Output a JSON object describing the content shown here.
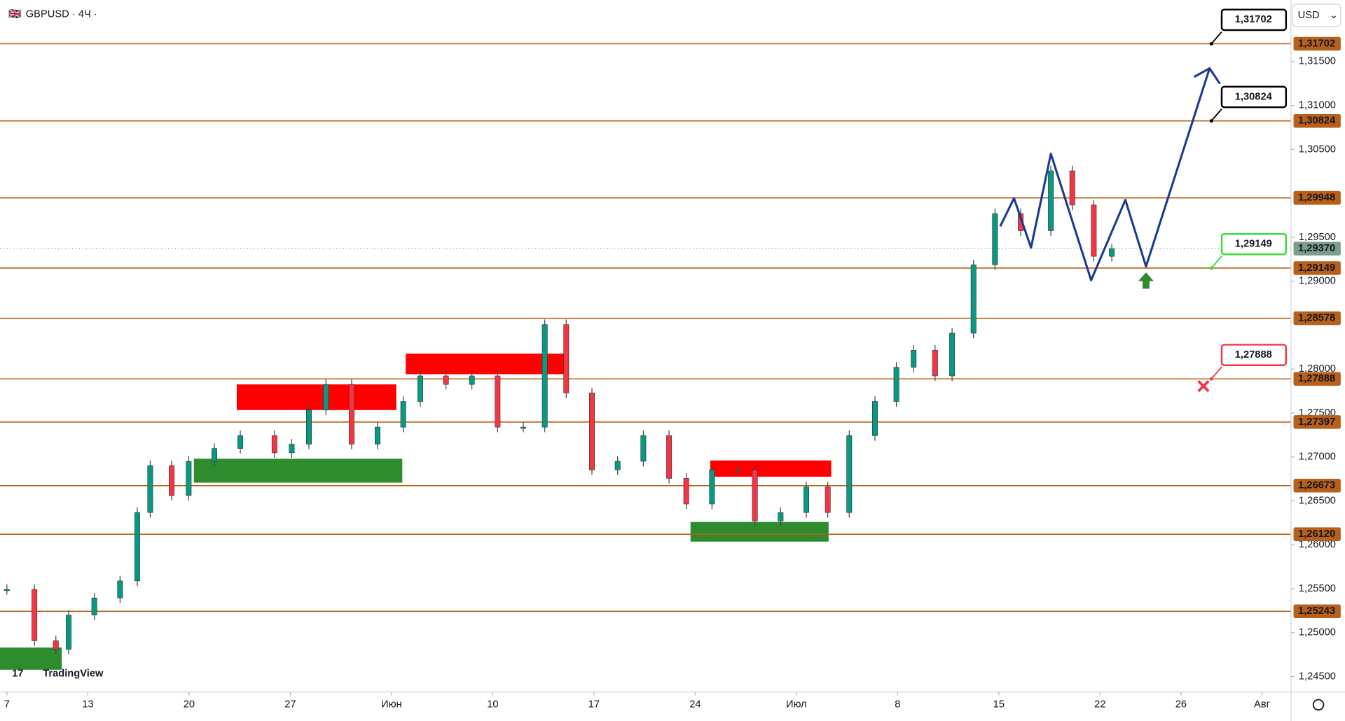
{
  "chart_data": {
    "type": "candlestick",
    "title": "GBPUSD · 4Ч ·",
    "currency": "USD",
    "logo": "TradingView",
    "x": [
      0,
      1.36,
      2.42,
      3.05,
      4.32,
      5.59,
      6.44,
      7.08,
      8.14,
      8.98,
      10.25,
      11.53,
      13.22,
      14.07,
      14.92,
      15.76,
      17.03,
      18.31,
      19.58,
      20.42,
      21.69,
      22.97,
      24.24,
      25.51,
      26.57,
      27.63,
      28.9,
      30.17,
      31.44,
      32.71,
      33.56,
      34.83,
      36.1,
      36.95,
      38.22,
      39.49,
      40.55,
      41.61,
      42.88,
      43.94,
      44.79,
      45.85,
      46.69,
      47.75,
      48.81,
      50.08,
      51.57,
      52.63,
      53.69,
      54.58
    ],
    "values": [
      1.25492,
      1.24908,
      1.24811,
      1.252,
      1.25395,
      1.25589,
      1.26367,
      1.26901,
      1.26561,
      1.2695,
      1.27096,
      1.27242,
      1.27047,
      1.27145,
      1.27533,
      1.27825,
      1.27145,
      1.27339,
      1.27631,
      1.27922,
      1.27825,
      1.27922,
      1.27339,
      1.27339,
      1.28506,
      1.27728,
      1.26853,
      1.2695,
      1.27242,
      1.26756,
      1.26464,
      1.26853,
      1.26853,
      1.2627,
      1.26367,
      1.26658,
      1.26367,
      1.27242,
      1.27631,
      1.2802,
      1.28214,
      1.27922,
      1.28408,
      1.29186,
      1.29769,
      1.29575,
      1.30256,
      1.29867,
      1.29283,
      1.2937
    ],
    "up_color": "#089981",
    "down_color": "#f23645",
    "xlim": [
      -0.34,
      63.43
    ],
    "xticks": [
      {
        "value": 0,
        "label": "7"
      },
      {
        "value": 4,
        "label": "13"
      },
      {
        "value": 9,
        "label": "20"
      },
      {
        "value": 14,
        "label": "27"
      },
      {
        "value": 19,
        "label": "Июн"
      },
      {
        "value": 24,
        "label": "10"
      },
      {
        "value": 29,
        "label": "17"
      },
      {
        "value": 34,
        "label": "24"
      },
      {
        "value": 39,
        "label": "Июл"
      },
      {
        "value": 44,
        "label": "8"
      },
      {
        "value": 49,
        "label": "15"
      },
      {
        "value": 54,
        "label": "22"
      },
      {
        "value": 58,
        "label": "26"
      },
      {
        "value": 62,
        "label": "Авг"
      }
    ],
    "ylim": [
      1.24325,
      1.322
    ],
    "yticks": [
      {
        "value": 1.315,
        "label": "1,31500"
      },
      {
        "value": 1.31,
        "label": "1,31000"
      },
      {
        "value": 1.305,
        "label": "1,30500"
      },
      {
        "value": 1.295,
        "label": "1,29500"
      },
      {
        "value": 1.29,
        "label": "1,29000"
      },
      {
        "value": 1.28,
        "label": "1,28000"
      },
      {
        "value": 1.275,
        "label": "1,27500"
      },
      {
        "value": 1.27,
        "label": "1,27000"
      },
      {
        "value": 1.265,
        "label": "1,26500"
      },
      {
        "value": 1.26,
        "label": "1,26000"
      },
      {
        "value": 1.255,
        "label": "1,25500"
      },
      {
        "value": 1.25,
        "label": "1,25000"
      },
      {
        "value": 1.245,
        "label": "1,24500"
      }
    ],
    "levels": {
      "color": "#b8601a",
      "values": [
        1.31702,
        1.30824,
        1.29948,
        1.29149,
        1.28578,
        1.27888,
        1.27397,
        1.26673,
        1.2612,
        1.25243
      ],
      "value_labels": [
        "1,31702",
        "1,30824",
        "1,29948",
        "1,29149",
        "1,28578",
        "1,27888",
        "1,27397",
        "1,26673",
        "1,26120",
        "1,25243"
      ]
    },
    "last_price": {
      "value": 1.2937,
      "label": "1,29370",
      "color": "#7d9e8c"
    },
    "forecast": {
      "color": "#1a3a8f",
      "x": [
        49.07,
        49.75,
        50.59,
        51.57,
        53.56,
        55.25,
        56.27,
        59.41
      ],
      "values": [
        1.29624,
        1.29944,
        1.29381,
        1.3045,
        1.29011,
        1.29925,
        1.29167,
        1.31422
      ]
    },
    "callouts": [
      {
        "x": 59.5,
        "value": 1.31702,
        "label": "1,31702",
        "color": "#000000"
      },
      {
        "x": 59.5,
        "value": 1.30824,
        "label": "1,30824",
        "color": "#000000"
      },
      {
        "x": 59.5,
        "value": 1.29149,
        "label": "1,29149",
        "color": "#33dd33"
      },
      {
        "x": 59.5,
        "value": 1.27888,
        "label": "1,27888",
        "color": "#f23645"
      }
    ]
  }
}
